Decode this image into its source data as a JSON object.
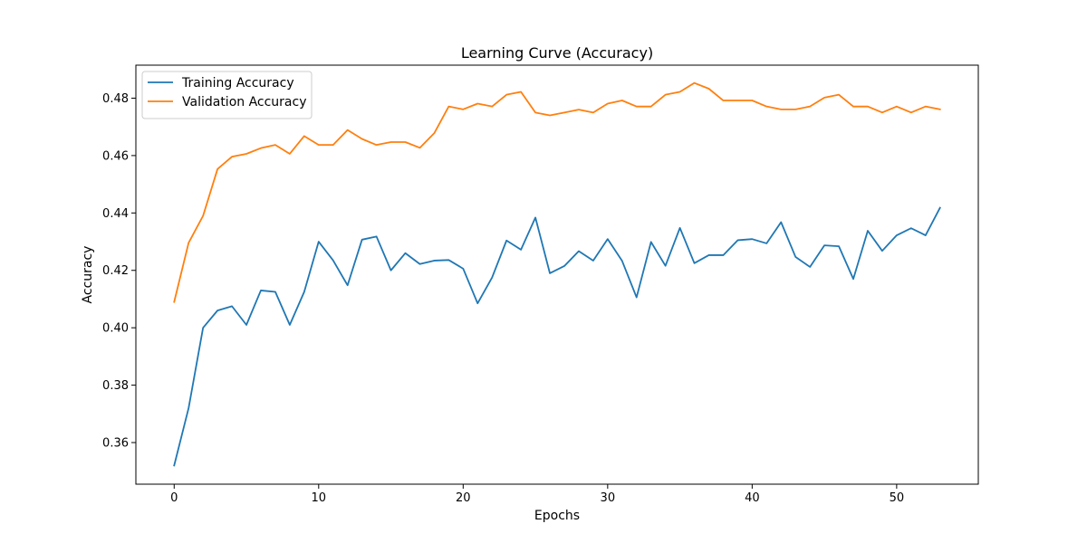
{
  "chart_data": {
    "type": "line",
    "title": "Learning Curve (Accuracy)",
    "xlabel": "Epochs",
    "ylabel": "Accuracy",
    "xlim": [
      -2.65,
      55.65
    ],
    "ylim": [
      0.3455,
      0.4915
    ],
    "xticks": [
      0,
      10,
      20,
      30,
      40,
      50
    ],
    "yticks": [
      0.36,
      0.38,
      0.4,
      0.42,
      0.44,
      0.46,
      0.48
    ],
    "ytick_labels": [
      "0.36",
      "0.38",
      "0.40",
      "0.42",
      "0.44",
      "0.46",
      "0.48"
    ],
    "grid": false,
    "legend_position": "upper-left",
    "x": [
      0,
      1,
      2,
      3,
      4,
      5,
      6,
      7,
      8,
      9,
      10,
      11,
      12,
      13,
      14,
      15,
      16,
      17,
      18,
      19,
      20,
      21,
      22,
      23,
      24,
      25,
      26,
      27,
      28,
      29,
      30,
      31,
      32,
      33,
      34,
      35,
      36,
      37,
      38,
      39,
      40,
      41,
      42,
      43,
      44,
      45,
      46,
      47,
      48,
      49,
      50,
      51,
      52,
      53
    ],
    "series": [
      {
        "name": "Training Accuracy",
        "color": "#1f77b4",
        "values": [
          0.352,
          0.372,
          0.4,
          0.406,
          0.4075,
          0.401,
          0.413,
          0.4125,
          0.401,
          0.4125,
          0.43,
          0.4235,
          0.4148,
          0.4307,
          0.4318,
          0.42,
          0.426,
          0.4222,
          0.4234,
          0.4236,
          0.4206,
          0.4085,
          0.4175,
          0.4304,
          0.4272,
          0.4384,
          0.419,
          0.4215,
          0.4267,
          0.4234,
          0.4309,
          0.4233,
          0.4106,
          0.4299,
          0.4216,
          0.4348,
          0.4225,
          0.4253,
          0.4253,
          0.4305,
          0.4309,
          0.4294,
          0.4368,
          0.4247,
          0.4212,
          0.4287,
          0.4284,
          0.417,
          0.4338,
          0.4268,
          0.4322,
          0.4347,
          0.4322,
          0.4418
        ]
      },
      {
        "name": "Validation Accuracy",
        "color": "#ff7f0e",
        "values": [
          0.409,
          0.4296,
          0.439,
          0.4553,
          0.4596,
          0.4606,
          0.4626,
          0.4637,
          0.4606,
          0.4668,
          0.4637,
          0.4637,
          0.4689,
          0.4658,
          0.4637,
          0.4647,
          0.4647,
          0.4627,
          0.4678,
          0.4771,
          0.4761,
          0.4781,
          0.4771,
          0.4812,
          0.4822,
          0.475,
          0.474,
          0.475,
          0.476,
          0.475,
          0.4781,
          0.4792,
          0.4771,
          0.4771,
          0.4812,
          0.4822,
          0.4853,
          0.4833,
          0.4792,
          0.4792,
          0.4792,
          0.4771,
          0.4761,
          0.4761,
          0.4771,
          0.4802,
          0.4812,
          0.4771,
          0.4771,
          0.475,
          0.4771,
          0.475,
          0.4771,
          0.4761
        ]
      }
    ]
  }
}
